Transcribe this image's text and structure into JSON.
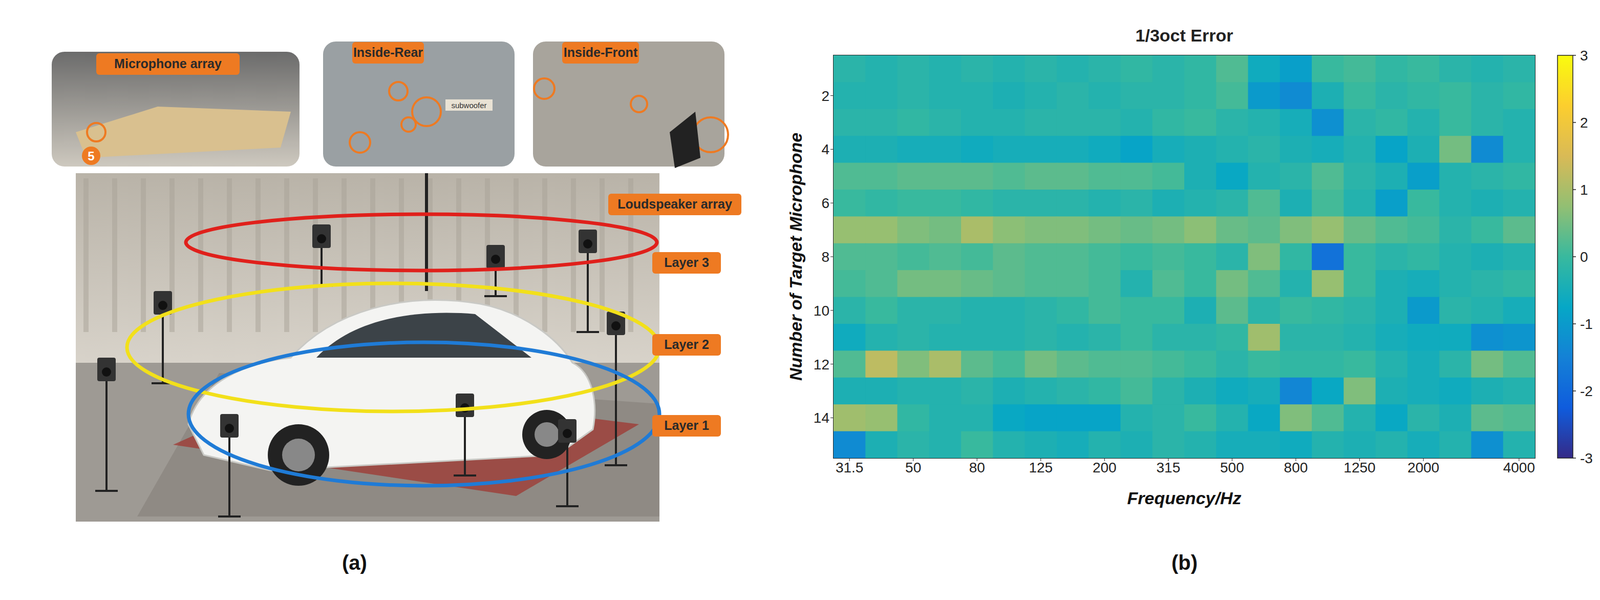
{
  "panel_a": {
    "label": "(a)",
    "insets": [
      {
        "label": "Microphone array",
        "marker": "5"
      },
      {
        "label": "Inside-Rear",
        "annotation": "subwoofer"
      },
      {
        "label": "Inside-Front"
      }
    ],
    "labels": [
      "Loudspeaker array",
      "Layer 3",
      "Layer 2",
      "Layer 1"
    ]
  },
  "panel_b": {
    "label": "(b)"
  },
  "chart_data": {
    "type": "heatmap",
    "title": "1/3oct Error",
    "x_label": "Frequency/Hz",
    "y_label": "Number of Target Microphone",
    "categories": [
      31.5,
      null,
      50,
      null,
      80,
      null,
      125,
      null,
      200,
      null,
      315,
      null,
      500,
      null,
      800,
      null,
      1250,
      null,
      2000,
      null,
      null,
      4000
    ],
    "y": [
      1,
      2,
      3,
      4,
      5,
      6,
      7,
      8,
      9,
      10,
      11,
      12,
      13,
      14,
      15
    ],
    "ylim": [
      0.5,
      15.5
    ],
    "yticks": [
      2,
      4,
      6,
      8,
      10,
      12,
      14
    ],
    "cells": [
      [
        -0.2,
        -0.3,
        -0.2,
        -0.3,
        -0.2,
        -0.3,
        -0.2,
        -0.3,
        -0.2,
        -0.1,
        -0.2,
        -0.1,
        0.2,
        -0.6,
        -0.9,
        0.0,
        0.1,
        -0.1,
        0.0,
        -0.2,
        -0.3,
        -0.2
      ],
      [
        -0.3,
        -0.3,
        -0.2,
        -0.3,
        -0.3,
        -0.4,
        -0.3,
        -0.2,
        -0.3,
        -0.2,
        -0.2,
        -0.1,
        0.1,
        -1.0,
        -1.3,
        -0.4,
        0.0,
        -0.2,
        -0.1,
        0.0,
        -0.2,
        -0.1
      ],
      [
        -0.2,
        -0.2,
        -0.1,
        -0.2,
        -0.3,
        -0.3,
        -0.2,
        -0.2,
        -0.2,
        -0.3,
        -0.1,
        0.0,
        -0.2,
        -0.3,
        -0.5,
        -1.2,
        -0.2,
        -0.1,
        -0.3,
        0.0,
        -0.2,
        -0.3
      ],
      [
        -0.4,
        -0.4,
        -0.5,
        -0.5,
        -0.6,
        -0.5,
        -0.5,
        -0.5,
        -0.6,
        -0.8,
        -0.5,
        -0.4,
        -0.3,
        -0.2,
        -0.4,
        -0.5,
        -0.3,
        -0.8,
        -0.4,
        0.5,
        -1.3,
        -0.3
      ],
      [
        0.2,
        0.2,
        0.3,
        0.3,
        0.3,
        0.2,
        0.3,
        0.3,
        0.2,
        0.2,
        0.1,
        -0.4,
        -0.7,
        -0.3,
        -0.2,
        0.2,
        -0.2,
        -0.4,
        -0.9,
        -0.3,
        -0.2,
        -0.1
      ],
      [
        0.0,
        -0.1,
        0.0,
        0.0,
        -0.1,
        -0.2,
        -0.2,
        -0.2,
        -0.3,
        -0.2,
        -0.4,
        -0.3,
        -0.2,
        0.2,
        -0.4,
        0.1,
        -0.3,
        -0.9,
        0.0,
        -0.3,
        -0.4,
        -0.3
      ],
      [
        0.8,
        0.8,
        0.6,
        0.5,
        1.0,
        0.7,
        0.6,
        0.6,
        0.5,
        0.4,
        0.5,
        0.7,
        0.4,
        0.3,
        0.6,
        0.8,
        0.4,
        0.2,
        0.1,
        -0.2,
        0.0,
        0.3
      ],
      [
        0.2,
        0.2,
        0.1,
        0.2,
        0.1,
        0.3,
        0.2,
        0.2,
        0.1,
        0.0,
        0.1,
        0.0,
        -0.2,
        0.6,
        -0.1,
        -1.8,
        0.0,
        -0.2,
        -0.1,
        -0.3,
        -0.4,
        -0.3
      ],
      [
        0.1,
        0.2,
        0.5,
        0.5,
        0.4,
        0.3,
        0.2,
        0.2,
        0.1,
        -0.3,
        0.2,
        0.0,
        0.5,
        0.2,
        -0.3,
        0.8,
        0.0,
        -0.4,
        -0.5,
        -0.3,
        -0.2,
        -0.1
      ],
      [
        -0.2,
        0.0,
        -0.2,
        -0.2,
        -0.3,
        -0.3,
        -0.2,
        -0.1,
        0.1,
        0.0,
        0.0,
        -0.4,
        0.3,
        -0.2,
        0.0,
        -0.1,
        -0.2,
        -0.4,
        -1.0,
        -0.2,
        -0.3,
        -0.5
      ],
      [
        -0.6,
        -0.3,
        -0.2,
        -0.3,
        -0.3,
        -0.3,
        -0.2,
        -0.3,
        -0.2,
        0.0,
        -0.2,
        -0.2,
        -0.1,
        0.9,
        -0.2,
        -0.2,
        -0.3,
        -0.5,
        -0.6,
        -0.6,
        -1.2,
        -1.1
      ],
      [
        0.2,
        1.2,
        0.6,
        1.0,
        0.3,
        0.1,
        0.5,
        0.3,
        0.2,
        0.2,
        0.1,
        0.0,
        -0.2,
        0.0,
        -0.1,
        -0.1,
        0.0,
        -0.3,
        -0.5,
        -0.2,
        0.5,
        0.2
      ],
      [
        -0.4,
        -0.4,
        -0.3,
        -0.3,
        -0.2,
        -0.4,
        -0.3,
        -0.2,
        -0.1,
        0.1,
        -0.2,
        -0.4,
        -0.6,
        -0.5,
        -1.4,
        -0.7,
        0.6,
        -0.4,
        -0.5,
        -0.6,
        -0.4,
        -0.3
      ],
      [
        0.9,
        0.8,
        -0.1,
        -0.3,
        -0.3,
        -0.7,
        -0.8,
        -0.8,
        -0.8,
        -0.3,
        -0.2,
        0.0,
        -0.3,
        -0.7,
        0.6,
        0.2,
        -0.3,
        -0.7,
        -0.2,
        -0.4,
        0.3,
        0.2
      ],
      [
        -1.3,
        -0.4,
        -0.2,
        -0.3,
        0.0,
        -0.3,
        -0.4,
        -0.5,
        -0.3,
        -0.4,
        -0.2,
        -0.3,
        -0.5,
        -0.5,
        -0.6,
        -0.3,
        -0.4,
        -0.3,
        -0.5,
        -0.3,
        -1.2,
        -0.3
      ]
    ],
    "colorbar_range": [
      -3,
      3
    ],
    "colorbar_ticks": [
      -3,
      -2,
      -1,
      0,
      1,
      2,
      3
    ]
  }
}
